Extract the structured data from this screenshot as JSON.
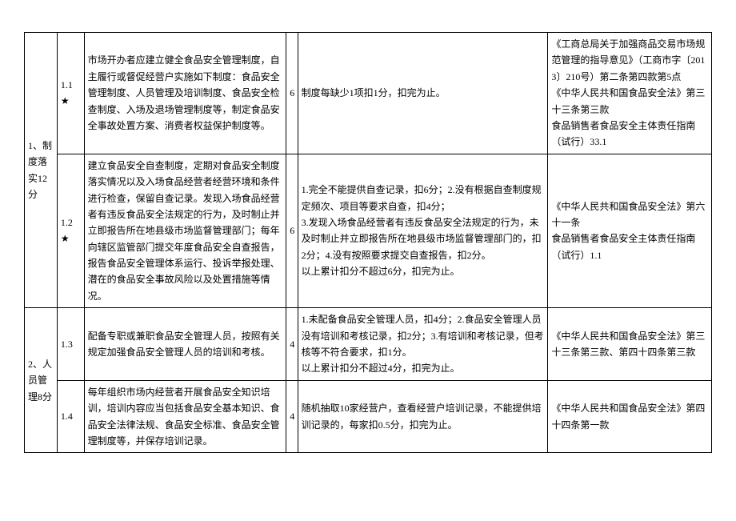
{
  "rows": [
    {
      "cat": "1、制度落实12分",
      "catRowspan": 2,
      "idx": "1.1★",
      "desc": "市场开办者应建立健全食品安全管理制度，自主履行或督促经营户实施如下制度：食品安全管理制度、人员管理及培训制度、食品安全检查制度、入场及退场管理制度等，制定食品安全事故处置方案、消费者权益保护制度等。",
      "score": "6",
      "rule": "制度每缺少1项扣1分，扣完为止。",
      "basis": "《工商总局关于加强商品交易市场规范管理的指导意见》（工商市字〔2013〕210号）第二条第四款第5点\n《中华人民共和国食品安全法》第三十三条第三款\n食品销售者食品安全主体责任指南（试行）33.1"
    },
    {
      "idx": "1.2★",
      "desc": "建立食品安全自查制度，定期对食品安全制度落实情况以及入场食品经营者经营环境和条件进行检查，保留自查记录。发现入场食品经营者有违反食品安全法规定的行为，及时制止并立即报告所在地县级市场监督管理部门；每年向辖区监管部门提交年度食品安全自查报告，报告食品安全管理体系运行、投诉举报处理、潜在的食品安全事故风险以及处置措施等情况。",
      "score": "6",
      "rule": "1.完全不能提供自查记录，扣6分；2.没有根据自查制度规定频次、项目等要求自查，扣4分；\n3.发现入场食品经营者有违反食品安全法规定的行为，未及时制止并立即报告所在地县级市场监督管理部门的，扣2分；4.没有按照要求提交自查报告，扣2分。\n以上累计扣分不超过6分，扣完为止。",
      "basis": "《中华人民共和国食品安全法》第六十一条\n食品销售者食品安全主体责任指南（试行）1.1"
    },
    {
      "cat": "2、人员管理8分",
      "catRowspan": 2,
      "idx": "1.3",
      "desc": "配备专职或兼职食品安全管理人员，按照有关规定加强食品安全管理人员的培训和考核。",
      "score": "4",
      "rule": "1.未配备食品安全管理人员，扣4分；2.食品安全管理人员没有培训和考核记录，扣2分；3.有培训和考核记录，但考核等不符合要求，扣1分。\n以上累计扣分不超过4分，扣完为止。",
      "basis": "《中华人民共和国食品安全法》第三十三条第三款、第四十四条第三款"
    },
    {
      "idx": "1.4",
      "desc": "每年组织市场内经营者开展食品安全知识培训，培训内容应当包括食品安全基本知识、食品安全法律法规、食品安全标准、食品安全管理制度等，并保存培训记录。",
      "score": "4",
      "rule": "随机抽取10家经营户，查看经营户培训记录，不能提供培训记录的，每家扣0.5分，扣完为止。",
      "basis": "《中华人民共和国食品安全法》第四十四条第一款"
    }
  ]
}
